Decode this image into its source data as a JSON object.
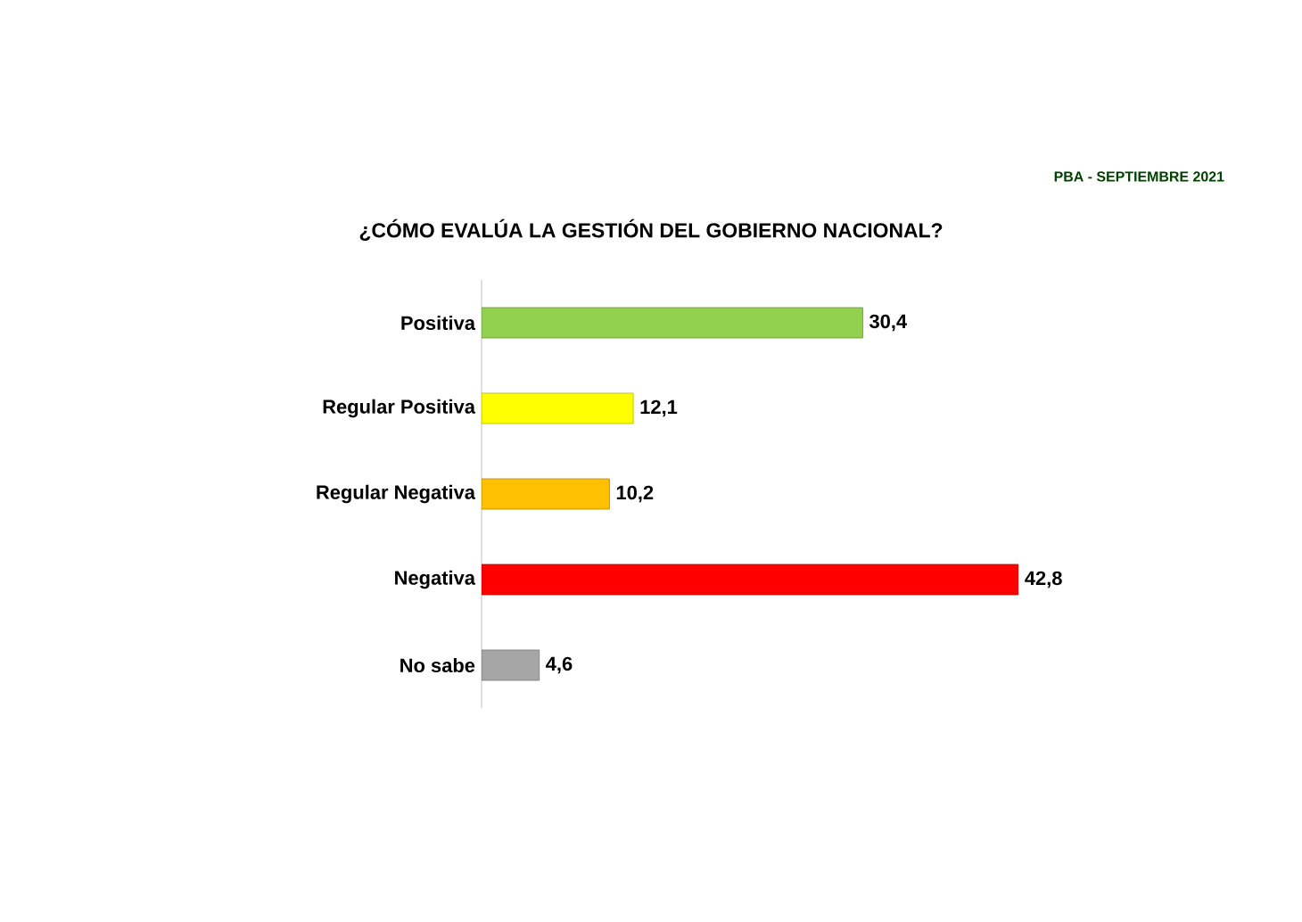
{
  "chart_data": {
    "type": "bar",
    "orientation": "horizontal",
    "title": "¿CÓMO EVALÚA LA GESTIÓN DEL GOBIERNO NACIONAL?",
    "subtitle": "PBA - SEPTIEMBRE 2021",
    "categories": [
      "Positiva",
      "Regular Positiva",
      "Regular Negativa",
      "Negativa",
      "No sabe"
    ],
    "values": [
      30.4,
      12.1,
      10.2,
      42.8,
      4.6
    ],
    "colors": [
      "#92d050",
      "#ffff00",
      "#ffc000",
      "#ff0000",
      "#a6a6a6"
    ],
    "value_labels": [
      "30,4",
      "12,1",
      "10,2",
      "42,8",
      "4,6"
    ],
    "grid": false
  }
}
